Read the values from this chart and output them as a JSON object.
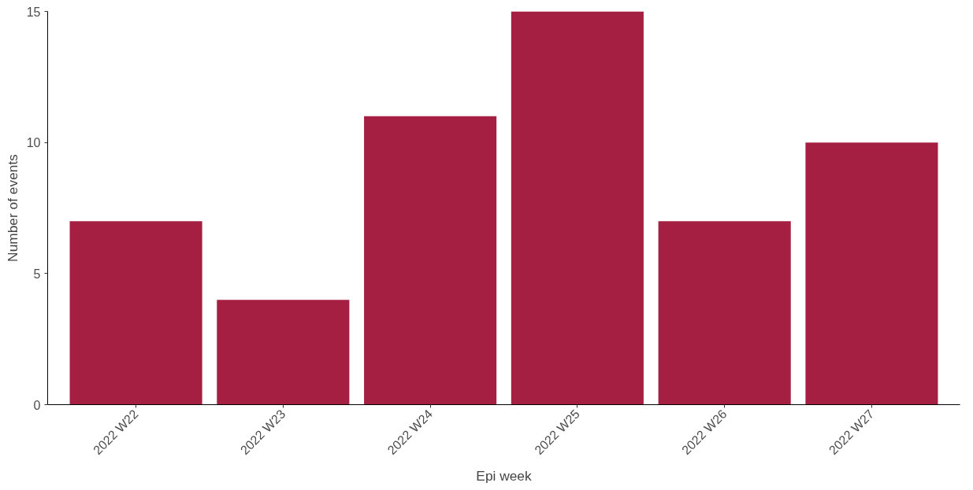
{
  "chart_data": {
    "type": "bar",
    "xlabel": "Epi week",
    "ylabel": "Number of events",
    "categories": [
      "2022 W22",
      "2022 W23",
      "2022 W24",
      "2022 W25",
      "2022 W26",
      "2022 W27"
    ],
    "values": [
      7,
      4,
      11,
      15,
      7,
      10
    ],
    "color": "#a51f43",
    "ylim": [
      0,
      15
    ],
    "yticks": [
      0,
      5,
      10,
      15
    ],
    "grid": false
  }
}
